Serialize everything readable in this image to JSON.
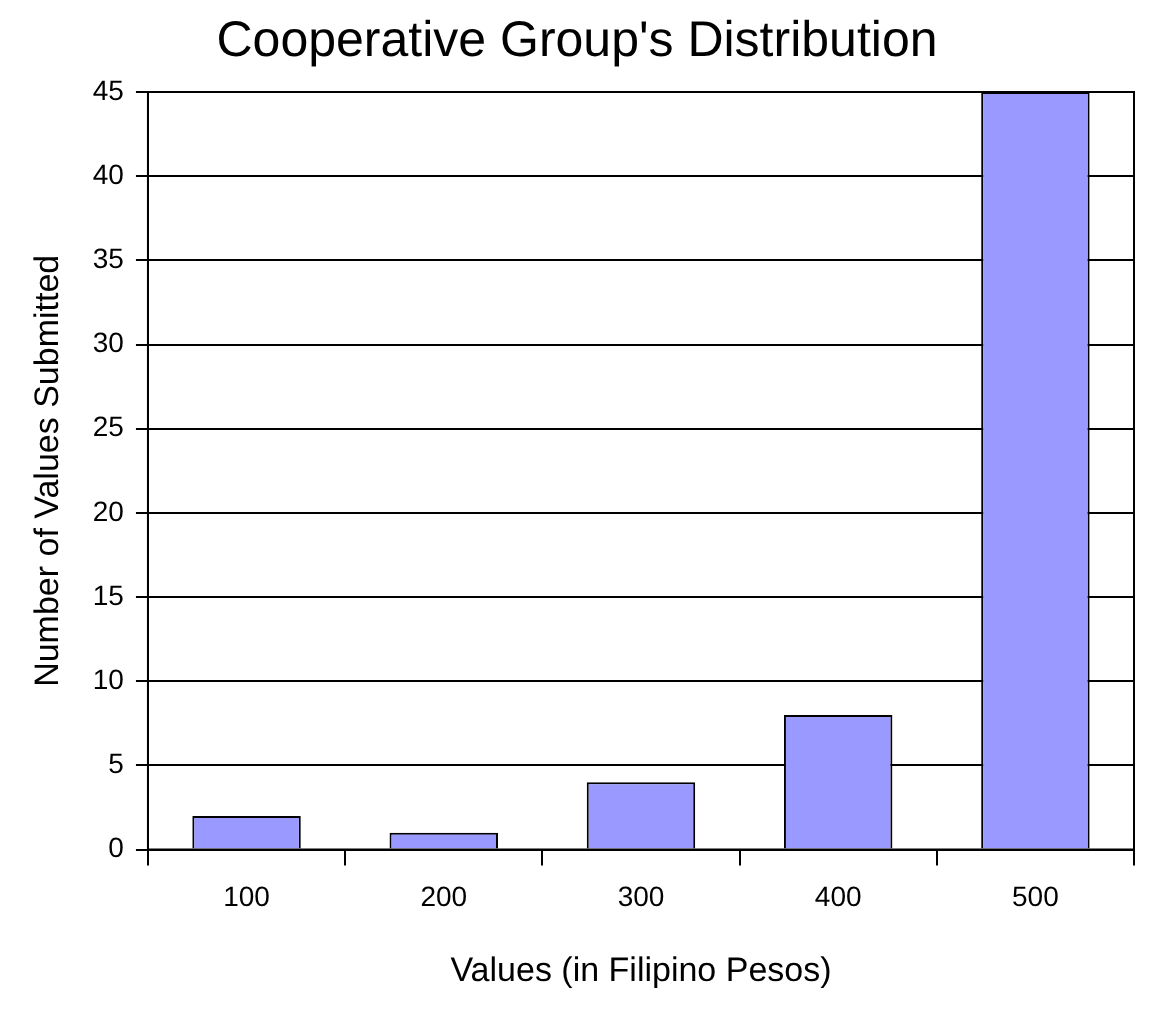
{
  "chart_data": {
    "type": "bar",
    "title": "Cooperative Group's Distribution",
    "xlabel": "Values (in Filipino Pesos)",
    "ylabel": "Number of Values Submitted",
    "categories": [
      "100",
      "200",
      "300",
      "400",
      "500"
    ],
    "values": [
      2,
      1,
      4,
      8,
      45
    ],
    "color": "#9999ff",
    "ylim": [
      0,
      45
    ],
    "yticks": [
      0,
      5,
      10,
      15,
      20,
      25,
      30,
      35,
      40,
      45
    ],
    "grid": "y",
    "legend": false
  }
}
